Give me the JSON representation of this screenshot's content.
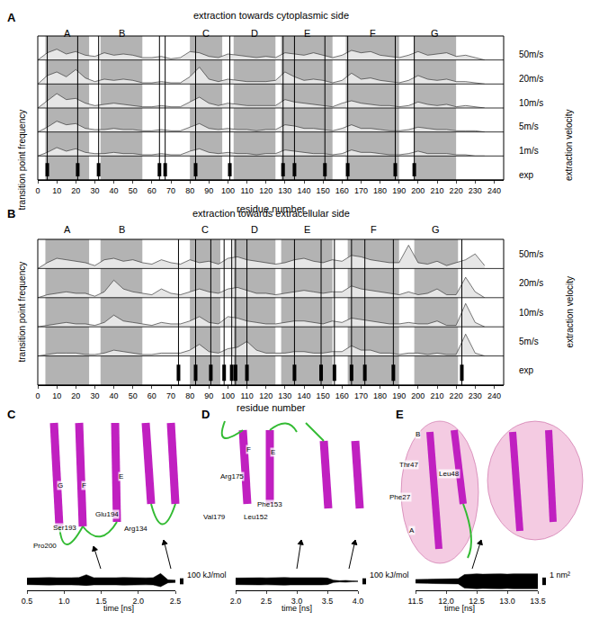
{
  "chart_data": [
    {
      "panel": "A",
      "type": "area",
      "title": "extraction towards cytoplasmic side",
      "x_label": "residue number",
      "y_label": "transition point frequency",
      "right_label": "extraction velocity",
      "x": [
        0,
        5,
        10,
        15,
        20,
        25,
        30,
        35,
        40,
        45,
        50,
        55,
        60,
        65,
        70,
        75,
        80,
        85,
        90,
        95,
        100,
        105,
        110,
        115,
        120,
        125,
        130,
        135,
        140,
        145,
        150,
        155,
        160,
        165,
        170,
        175,
        180,
        185,
        190,
        195,
        200,
        205,
        210,
        215,
        220,
        225,
        230,
        235
      ],
      "xlim": [
        0,
        245
      ],
      "xticks": [
        0,
        10,
        20,
        30,
        40,
        50,
        60,
        70,
        80,
        90,
        100,
        110,
        120,
        130,
        140,
        150,
        160,
        170,
        180,
        190,
        200,
        210,
        220,
        230,
        240
      ],
      "ylim": [
        0,
        1
      ],
      "tick_labels": "x",
      "regions": [
        {
          "label": "A",
          "start": 4,
          "end": 27,
          "color": "#b3b3b3"
        },
        {
          "label": "B",
          "start": 33,
          "end": 55,
          "color": "#b3b3b3"
        },
        {
          "label": "C",
          "start": 80,
          "end": 97,
          "color": "#b3b3b3"
        },
        {
          "label": "D",
          "start": 103,
          "end": 125,
          "color": "#b3b3b3"
        },
        {
          "label": "E",
          "start": 128,
          "end": 155,
          "color": "#b3b3b3"
        },
        {
          "label": "F",
          "start": 162,
          "end": 190,
          "color": "#b3b3b3"
        },
        {
          "label": "G",
          "start": 198,
          "end": 220,
          "color": "#b3b3b3"
        }
      ],
      "series": [
        {
          "name": "50m/s",
          "color": "#e6e6e6",
          "values": [
            0,
            0.3,
            0.45,
            0.25,
            0.35,
            0.2,
            0.15,
            0.3,
            0.2,
            0.25,
            0.2,
            0.1,
            0.1,
            0.15,
            0.05,
            0.1,
            0.35,
            0.3,
            0.15,
            0.1,
            0.25,
            0.2,
            0.15,
            0.1,
            0.15,
            0.1,
            0.3,
            0.25,
            0.2,
            0.3,
            0.2,
            0.1,
            0.2,
            0.4,
            0.3,
            0.35,
            0.2,
            0.15,
            0.1,
            0.2,
            0.35,
            0.2,
            0.25,
            0.3,
            0.15,
            0.2,
            0.1,
            0
          ]
        },
        {
          "name": "20m/s",
          "color": "#e6e6e6",
          "values": [
            0,
            0.35,
            0.5,
            0.3,
            0.6,
            0.25,
            0.1,
            0.2,
            0.15,
            0.2,
            0.15,
            0.05,
            0.05,
            0.1,
            0.05,
            0.05,
            0.3,
            0.7,
            0.2,
            0.1,
            0.2,
            0.15,
            0.1,
            0.1,
            0.1,
            0.15,
            0.5,
            0.3,
            0.15,
            0.2,
            0.15,
            0.05,
            0.15,
            0.45,
            0.2,
            0.25,
            0.15,
            0.1,
            0.05,
            0.15,
            0.35,
            0.2,
            0.15,
            0.2,
            0.1,
            0.1,
            0.05,
            0
          ]
        },
        {
          "name": "10m/s",
          "color": "#e6e6e6",
          "values": [
            0,
            0.3,
            0.6,
            0.35,
            0.4,
            0.2,
            0.1,
            0.15,
            0.2,
            0.15,
            0.1,
            0.05,
            0.05,
            0.1,
            0.05,
            0.05,
            0.25,
            0.45,
            0.2,
            0.1,
            0.2,
            0.15,
            0.1,
            0.1,
            0.1,
            0.1,
            0.35,
            0.25,
            0.2,
            0.15,
            0.1,
            0.05,
            0.2,
            0.3,
            0.2,
            0.15,
            0.1,
            0.1,
            0.05,
            0.1,
            0.25,
            0.15,
            0.1,
            0.15,
            0.05,
            0.1,
            0.05,
            0
          ]
        },
        {
          "name": "5m/s",
          "color": "#e6e6e6",
          "values": [
            0,
            0.2,
            0.45,
            0.3,
            0.35,
            0.15,
            0.1,
            0.1,
            0.15,
            0.1,
            0.1,
            0.05,
            0.05,
            0.1,
            0.05,
            0.05,
            0.2,
            0.35,
            0.15,
            0.1,
            0.15,
            0.1,
            0.1,
            0.05,
            0.1,
            0.1,
            0.3,
            0.25,
            0.15,
            0.15,
            0.1,
            0.05,
            0.15,
            0.3,
            0.15,
            0.15,
            0.1,
            0.05,
            0.05,
            0.1,
            0.2,
            0.15,
            0.1,
            0.1,
            0.05,
            0.05,
            0.05,
            0
          ]
        },
        {
          "name": "1m/s",
          "color": "#e6e6e6",
          "values": [
            0,
            0.15,
            0.35,
            0.2,
            0.3,
            0.15,
            0.1,
            0.1,
            0.15,
            0.1,
            0.1,
            0.05,
            0.05,
            0.1,
            0.05,
            0.05,
            0.2,
            0.3,
            0.15,
            0.1,
            0.15,
            0.1,
            0.1,
            0.05,
            0.1,
            0.1,
            0.25,
            0.2,
            0.15,
            0.1,
            0.1,
            0.05,
            0.1,
            0.25,
            0.15,
            0.15,
            0.1,
            0.05,
            0.05,
            0.1,
            0.2,
            0.1,
            0.1,
            0.1,
            0.05,
            0.05,
            0,
            0
          ]
        }
      ],
      "exp": {
        "name": "exp",
        "color": "#000000",
        "values": [
          5,
          21,
          32,
          64,
          67,
          83,
          101,
          129,
          135,
          151,
          163,
          188,
          198
        ]
      }
    },
    {
      "panel": "B",
      "type": "area",
      "title": "extraction towards extracellular side",
      "x_label": "residue number",
      "y_label": "transition point frequency",
      "right_label": "extraction velocity",
      "x": [
        0,
        5,
        10,
        15,
        20,
        25,
        30,
        35,
        40,
        45,
        50,
        55,
        60,
        65,
        70,
        75,
        80,
        85,
        90,
        95,
        100,
        105,
        110,
        115,
        120,
        125,
        130,
        135,
        140,
        145,
        150,
        155,
        160,
        165,
        170,
        175,
        180,
        185,
        190,
        195,
        200,
        205,
        210,
        215,
        220,
        225,
        230,
        235
      ],
      "xlim": [
        0,
        245
      ],
      "xticks": [
        0,
        10,
        20,
        30,
        40,
        50,
        60,
        70,
        80,
        90,
        100,
        110,
        120,
        130,
        140,
        150,
        160,
        170,
        180,
        190,
        200,
        210,
        220,
        230,
        240
      ],
      "ylim": [
        0,
        1
      ],
      "tick_labels": "x",
      "regions": [
        {
          "label": "A",
          "start": 4,
          "end": 27,
          "color": "#b3b3b3"
        },
        {
          "label": "B",
          "start": 33,
          "end": 55,
          "color": "#b3b3b3"
        },
        {
          "label": "C",
          "start": 80,
          "end": 96,
          "color": "#b3b3b3"
        },
        {
          "label": "D",
          "start": 103,
          "end": 125,
          "color": "#b3b3b3"
        },
        {
          "label": "E",
          "start": 128,
          "end": 155,
          "color": "#b3b3b3"
        },
        {
          "label": "F",
          "start": 163,
          "end": 190,
          "color": "#b3b3b3"
        },
        {
          "label": "G",
          "start": 198,
          "end": 221,
          "color": "#b3b3b3"
        }
      ],
      "series": [
        {
          "name": "50m/s",
          "color": "#e6e6e6",
          "values": [
            0,
            0.2,
            0.35,
            0.3,
            0.25,
            0.2,
            0.1,
            0.3,
            0.35,
            0.25,
            0.3,
            0.2,
            0.15,
            0.3,
            0.2,
            0.15,
            0.3,
            0.2,
            0.25,
            0.15,
            0.35,
            0.4,
            0.3,
            0.25,
            0.2,
            0.15,
            0.2,
            0.3,
            0.35,
            0.25,
            0.2,
            0.3,
            0.25,
            0.45,
            0.4,
            0.3,
            0.25,
            0.2,
            0.2,
            0.8,
            0.2,
            0.15,
            0.25,
            0.1,
            0.2,
            0.3,
            0.5,
            0.1
          ]
        },
        {
          "name": "20m/s",
          "color": "#e6e6e6",
          "values": [
            0,
            0.1,
            0.15,
            0.2,
            0.15,
            0.15,
            0.05,
            0.2,
            0.6,
            0.3,
            0.2,
            0.15,
            0.1,
            0.3,
            0.15,
            0.1,
            0.2,
            0.3,
            0.2,
            0.15,
            0.3,
            0.35,
            0.25,
            0.15,
            0.15,
            0.1,
            0.15,
            0.2,
            0.25,
            0.2,
            0.15,
            0.2,
            0.2,
            0.4,
            0.3,
            0.25,
            0.2,
            0.15,
            0.1,
            0.2,
            0.1,
            0.15,
            0.3,
            0.1,
            0.1,
            0.7,
            0.2,
            0
          ]
        },
        {
          "name": "10m/s",
          "color": "#e6e6e6",
          "values": [
            0,
            0.05,
            0.1,
            0.15,
            0.1,
            0.1,
            0.05,
            0.15,
            0.4,
            0.2,
            0.15,
            0.1,
            0.05,
            0.15,
            0.1,
            0.1,
            0.2,
            0.35,
            0.15,
            0.1,
            0.35,
            0.3,
            0.2,
            0.15,
            0.1,
            0.1,
            0.15,
            0.2,
            0.2,
            0.15,
            0.1,
            0.2,
            0.15,
            0.3,
            0.25,
            0.2,
            0.15,
            0.1,
            0.1,
            0.15,
            0.1,
            0.1,
            0.2,
            0.05,
            0.05,
            0.8,
            0.15,
            0
          ]
        },
        {
          "name": "5m/s",
          "color": "#e6e6e6",
          "values": [
            0,
            0.05,
            0.1,
            0.1,
            0.1,
            0.05,
            0.05,
            0.1,
            0.2,
            0.15,
            0.1,
            0.05,
            0.05,
            0.1,
            0.1,
            0.1,
            0.2,
            0.4,
            0.15,
            0.1,
            0.25,
            0.3,
            0.5,
            0.2,
            0.1,
            0.1,
            0.1,
            0.15,
            0.15,
            0.1,
            0.1,
            0.15,
            0.15,
            0.35,
            0.2,
            0.2,
            0.1,
            0.1,
            0.05,
            0.1,
            0.1,
            0.05,
            0.1,
            0.05,
            0.05,
            0.75,
            0.1,
            0
          ]
        }
      ],
      "exp": {
        "name": "exp",
        "color": "#000000",
        "values": [
          74,
          83,
          91,
          98,
          102,
          104,
          110,
          135,
          149,
          156,
          165,
          172,
          187,
          223
        ]
      }
    },
    {
      "panel": "C",
      "type": "area",
      "x_label": "time [ns]",
      "x": [
        0.5,
        0.6,
        0.7,
        0.8,
        0.9,
        1.0,
        1.1,
        1.2,
        1.3,
        1.4,
        1.5,
        1.6,
        1.7,
        1.8,
        1.9,
        2.0,
        2.1,
        2.2,
        2.3,
        2.4,
        2.5
      ],
      "series": [
        {
          "color": "#000000",
          "upper": [
            55,
            60,
            58,
            62,
            60,
            65,
            60,
            62,
            110,
            60,
            58,
            62,
            60,
            64,
            60,
            62,
            58,
            60,
            130,
            25,
            20
          ],
          "lower": [
            -55,
            -60,
            -58,
            -62,
            -60,
            -65,
            -60,
            -62,
            -70,
            -60,
            -58,
            -62,
            -60,
            -64,
            -60,
            -62,
            -58,
            -60,
            -90,
            -25,
            -20
          ]
        }
      ],
      "xlim": [
        0.5,
        2.5
      ],
      "xticks": [
        0.5,
        {
          "value": 1,
          "label": "1.0"
        },
        1.5,
        {
          "value": 2,
          "label": "2.0"
        },
        2.5
      ],
      "ylim": [
        -150,
        150
      ],
      "tick_labels": "x",
      "scale_bar": {
        "value": 100,
        "label": "100 kJ/mol"
      },
      "labels": [
        "G",
        "F",
        "E",
        "Ser193",
        "Glu194",
        "Arg134",
        "Pro200"
      ]
    },
    {
      "panel": "D",
      "type": "area",
      "x_label": "time [ns]",
      "x": [
        2.0,
        2.1,
        2.2,
        2.3,
        2.4,
        2.5,
        2.6,
        2.7,
        2.8,
        2.9,
        3.0,
        3.1,
        3.2,
        3.3,
        3.4,
        3.5,
        3.6,
        3.7,
        3.8,
        3.9,
        4.0
      ],
      "series": [
        {
          "color": "#000000",
          "upper": [
            55,
            58,
            60,
            62,
            60,
            58,
            62,
            60,
            64,
            60,
            62,
            58,
            60,
            62,
            60,
            55,
            20,
            10,
            15,
            8,
            5
          ],
          "lower": [
            -55,
            -58,
            -60,
            -62,
            -60,
            -58,
            -62,
            -60,
            -64,
            -60,
            -62,
            -58,
            -60,
            -62,
            -60,
            -55,
            -20,
            -10,
            -15,
            -8,
            -5
          ]
        }
      ],
      "xlim": [
        2,
        4
      ],
      "xticks": [
        {
          "value": 2,
          "label": "2.0"
        },
        2.5,
        {
          "value": 3,
          "label": "3.0"
        },
        3.5,
        {
          "value": 4,
          "label": "4.0"
        }
      ],
      "ylim": [
        -150,
        150
      ],
      "tick_labels": "x",
      "scale_bar": {
        "value": 100,
        "label": "100 kJ/mol"
      },
      "labels": [
        "F",
        "E",
        "Arg175",
        "Val179",
        "Phe153",
        "Leu152"
      ]
    },
    {
      "panel": "E",
      "type": "area",
      "x_label": "time [ns]",
      "x": [
        11.5,
        11.6,
        11.7,
        11.8,
        11.9,
        12.0,
        12.1,
        12.2,
        12.3,
        12.4,
        12.5,
        12.6,
        12.7,
        12.8,
        12.9,
        13.0,
        13.1,
        13.2,
        13.3,
        13.4,
        13.5
      ],
      "series": [
        {
          "color": "#000000",
          "upper": [
            0.25,
            0.3,
            0.28,
            0.3,
            0.3,
            0.32,
            0.3,
            0.35,
            0.9,
            0.95,
            1.0,
            0.95,
            1.0,
            0.98,
            1.0,
            0.95,
            1.0,
            0.98,
            1.0,
            0.95,
            1.0
          ],
          "lower": [
            -0.25,
            -0.3,
            -0.28,
            -0.3,
            -0.3,
            -0.32,
            -0.3,
            -0.35,
            -0.9,
            -0.95,
            -1.0,
            -0.95,
            -1.0,
            -0.98,
            -1.0,
            -0.95,
            -1.0,
            -0.98,
            -1.0,
            -0.95,
            -1.0
          ]
        }
      ],
      "xlim": [
        11.5,
        13.5
      ],
      "xticks": [
        11.5,
        {
          "value": 12,
          "label": "12.0"
        },
        12.5,
        {
          "value": 13,
          "label": "13.0"
        },
        13.5
      ],
      "ylim": [
        -1.2,
        1.2
      ],
      "tick_labels": "x",
      "scale_bar": {
        "value": 1,
        "label": "1 nm²"
      },
      "labels": [
        "B",
        "Thr47",
        "Leu48",
        "Phe27",
        "A"
      ]
    }
  ]
}
